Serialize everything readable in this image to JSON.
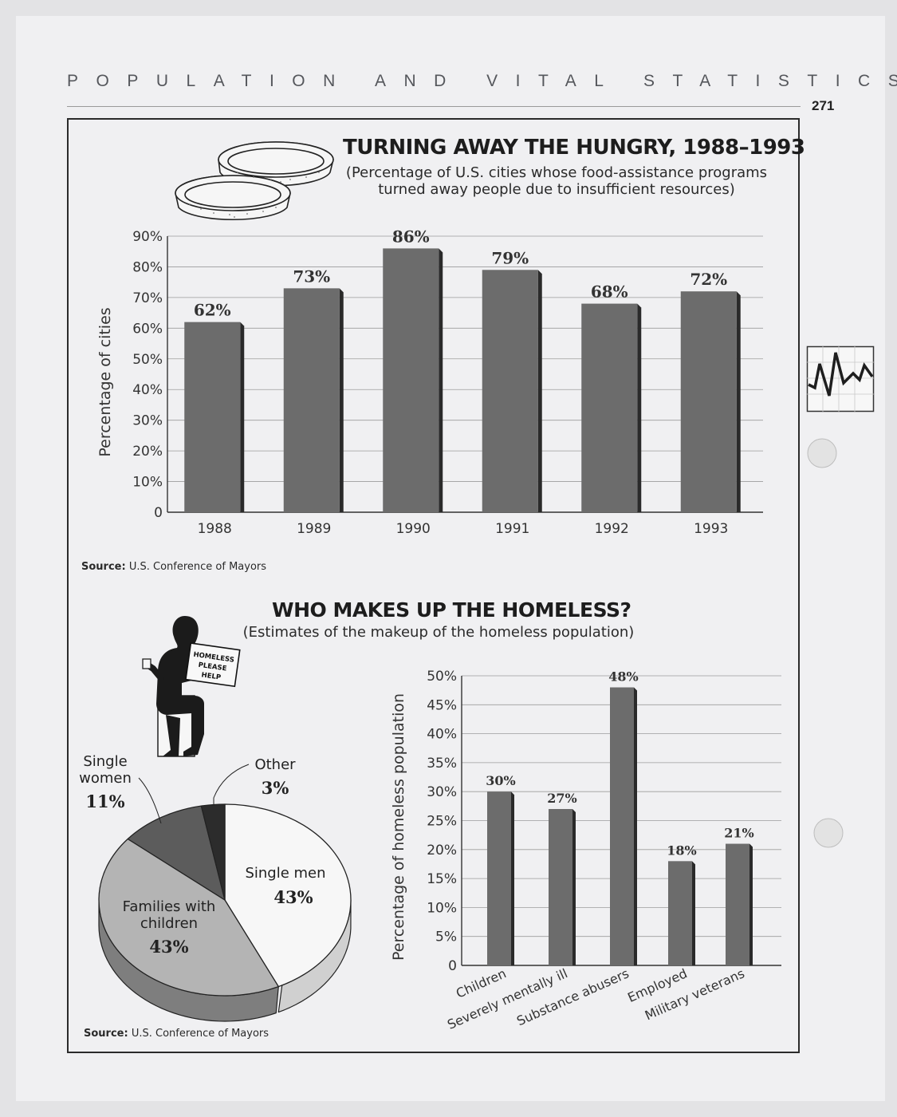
{
  "header": {
    "running_head": "POPULATION AND VITAL STATISTICS",
    "page_number": "271"
  },
  "chart_data": [
    {
      "type": "bar",
      "title": "TURNING AWAY THE HUNGRY, 1988–1993",
      "subtitle_lines": [
        "(Percentage of U.S. cities whose food-assistance programs",
        "turned away people due to insufficient resources)"
      ],
      "ylabel": "Percentage of cities",
      "categories": [
        "1988",
        "1989",
        "1990",
        "1991",
        "1992",
        "1993"
      ],
      "values": [
        62,
        73,
        86,
        79,
        68,
        72
      ],
      "value_labels": [
        "62%",
        "73%",
        "86%",
        "79%",
        "68%",
        "72%"
      ],
      "ylim": [
        0,
        90
      ],
      "yticks": [
        0,
        10,
        20,
        30,
        40,
        50,
        60,
        70,
        80,
        90
      ],
      "ytick_labels": [
        "0",
        "10%",
        "20%",
        "30%",
        "40%",
        "50%",
        "60%",
        "70%",
        "80%",
        "90%"
      ],
      "grid": true,
      "source_label": "Source:",
      "source_text": "U.S. Conference of Mayors",
      "colors": {
        "bar": "#6c6c6c",
        "bar_side": "#2a2a2a"
      }
    },
    {
      "type": "pie",
      "title": "WHO MAKES UP THE HOMELESS?",
      "subtitle": "(Estimates of the makeup of the homeless population)",
      "slices": [
        {
          "label_lines": [
            "Single men"
          ],
          "value": 43,
          "value_label": "43%",
          "color": "#f7f7f7"
        },
        {
          "label_lines": [
            "Families with",
            "children"
          ],
          "value": 43,
          "value_label": "43%",
          "color": "#b4b4b4"
        },
        {
          "label_lines": [
            "Single",
            "women"
          ],
          "value": 11,
          "value_label": "11%",
          "color": "#5c5c5c"
        },
        {
          "label_lines": [
            "Other"
          ],
          "value": 3,
          "value_label": "3%",
          "color": "#2c2c2c"
        }
      ],
      "sign_lines": [
        "HOMELESS",
        "PLEASE",
        "HELP"
      ],
      "source_label": "Source:",
      "source_text": "U.S. Conference of Mayors"
    },
    {
      "type": "bar",
      "ylabel": "Percentage of homeless population",
      "categories": [
        "Children",
        "Severely mentally ill",
        "Substance abusers",
        "Employed",
        "Military veterans"
      ],
      "values": [
        30,
        27,
        48,
        18,
        21
      ],
      "value_labels": [
        "30%",
        "27%",
        "48%",
        "18%",
        "21%"
      ],
      "ylim": [
        0,
        50
      ],
      "yticks": [
        0,
        5,
        10,
        15,
        20,
        25,
        30,
        35,
        40,
        45,
        50
      ],
      "ytick_labels": [
        "0",
        "5%",
        "10%",
        "15%",
        "20%",
        "25%",
        "30%",
        "35%",
        "40%",
        "45%",
        "50%"
      ],
      "grid": true,
      "colors": {
        "bar": "#6c6c6c",
        "bar_side": "#2a2a2a"
      }
    }
  ]
}
